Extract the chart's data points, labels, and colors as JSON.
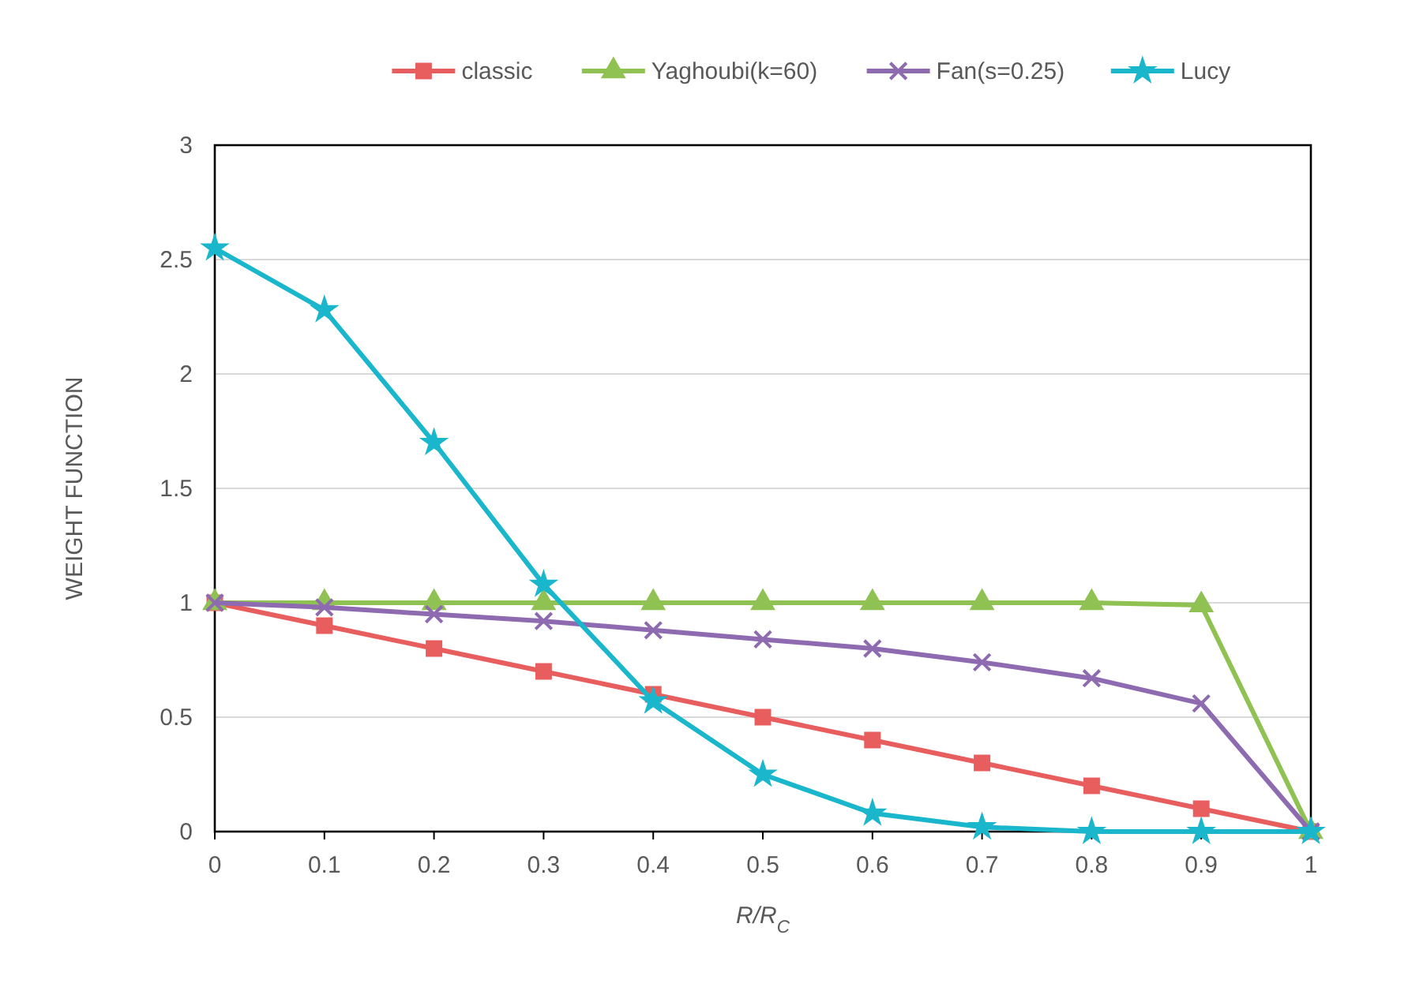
{
  "chart_data": {
    "type": "line",
    "xlabel": "R/R$_{C}$",
    "ylabel": "WEIGHT FUNCTION",
    "x": [
      0,
      0.1,
      0.2,
      0.3,
      0.4,
      0.5,
      0.6,
      0.7,
      0.8,
      0.9,
      1
    ],
    "xlim": [
      0,
      1
    ],
    "xticks": [
      0,
      0.1,
      0.2,
      0.3,
      0.4,
      0.5,
      0.6,
      0.7,
      0.8,
      0.9,
      1
    ],
    "ylim": [
      0,
      3
    ],
    "yticks": [
      0,
      0.5,
      1,
      1.5,
      2,
      2.5,
      3
    ],
    "grid": "y",
    "legend": "top",
    "series": [
      {
        "name": "classic",
        "color": "#e85e5e",
        "marker": "square",
        "values": [
          1,
          0.9,
          0.8,
          0.7,
          0.6,
          0.5,
          0.4,
          0.3,
          0.2,
          0.1,
          0
        ]
      },
      {
        "name": "Yaghoubi(k=60)",
        "color": "#8fc153",
        "marker": "triangle",
        "values": [
          1,
          1,
          1,
          1,
          1,
          1,
          1,
          1,
          1,
          0.99,
          0
        ]
      },
      {
        "name": "Fan(s=0.25)",
        "color": "#8e6bb0",
        "marker": "cross",
        "values": [
          1,
          0.98,
          0.95,
          0.92,
          0.88,
          0.84,
          0.8,
          0.74,
          0.67,
          0.56,
          0
        ]
      },
      {
        "name": "Lucy",
        "color": "#19b6cc",
        "marker": "star",
        "values": [
          2.55,
          2.28,
          1.7,
          1.08,
          0.57,
          0.25,
          0.08,
          0.02,
          0,
          0,
          0
        ]
      }
    ]
  }
}
